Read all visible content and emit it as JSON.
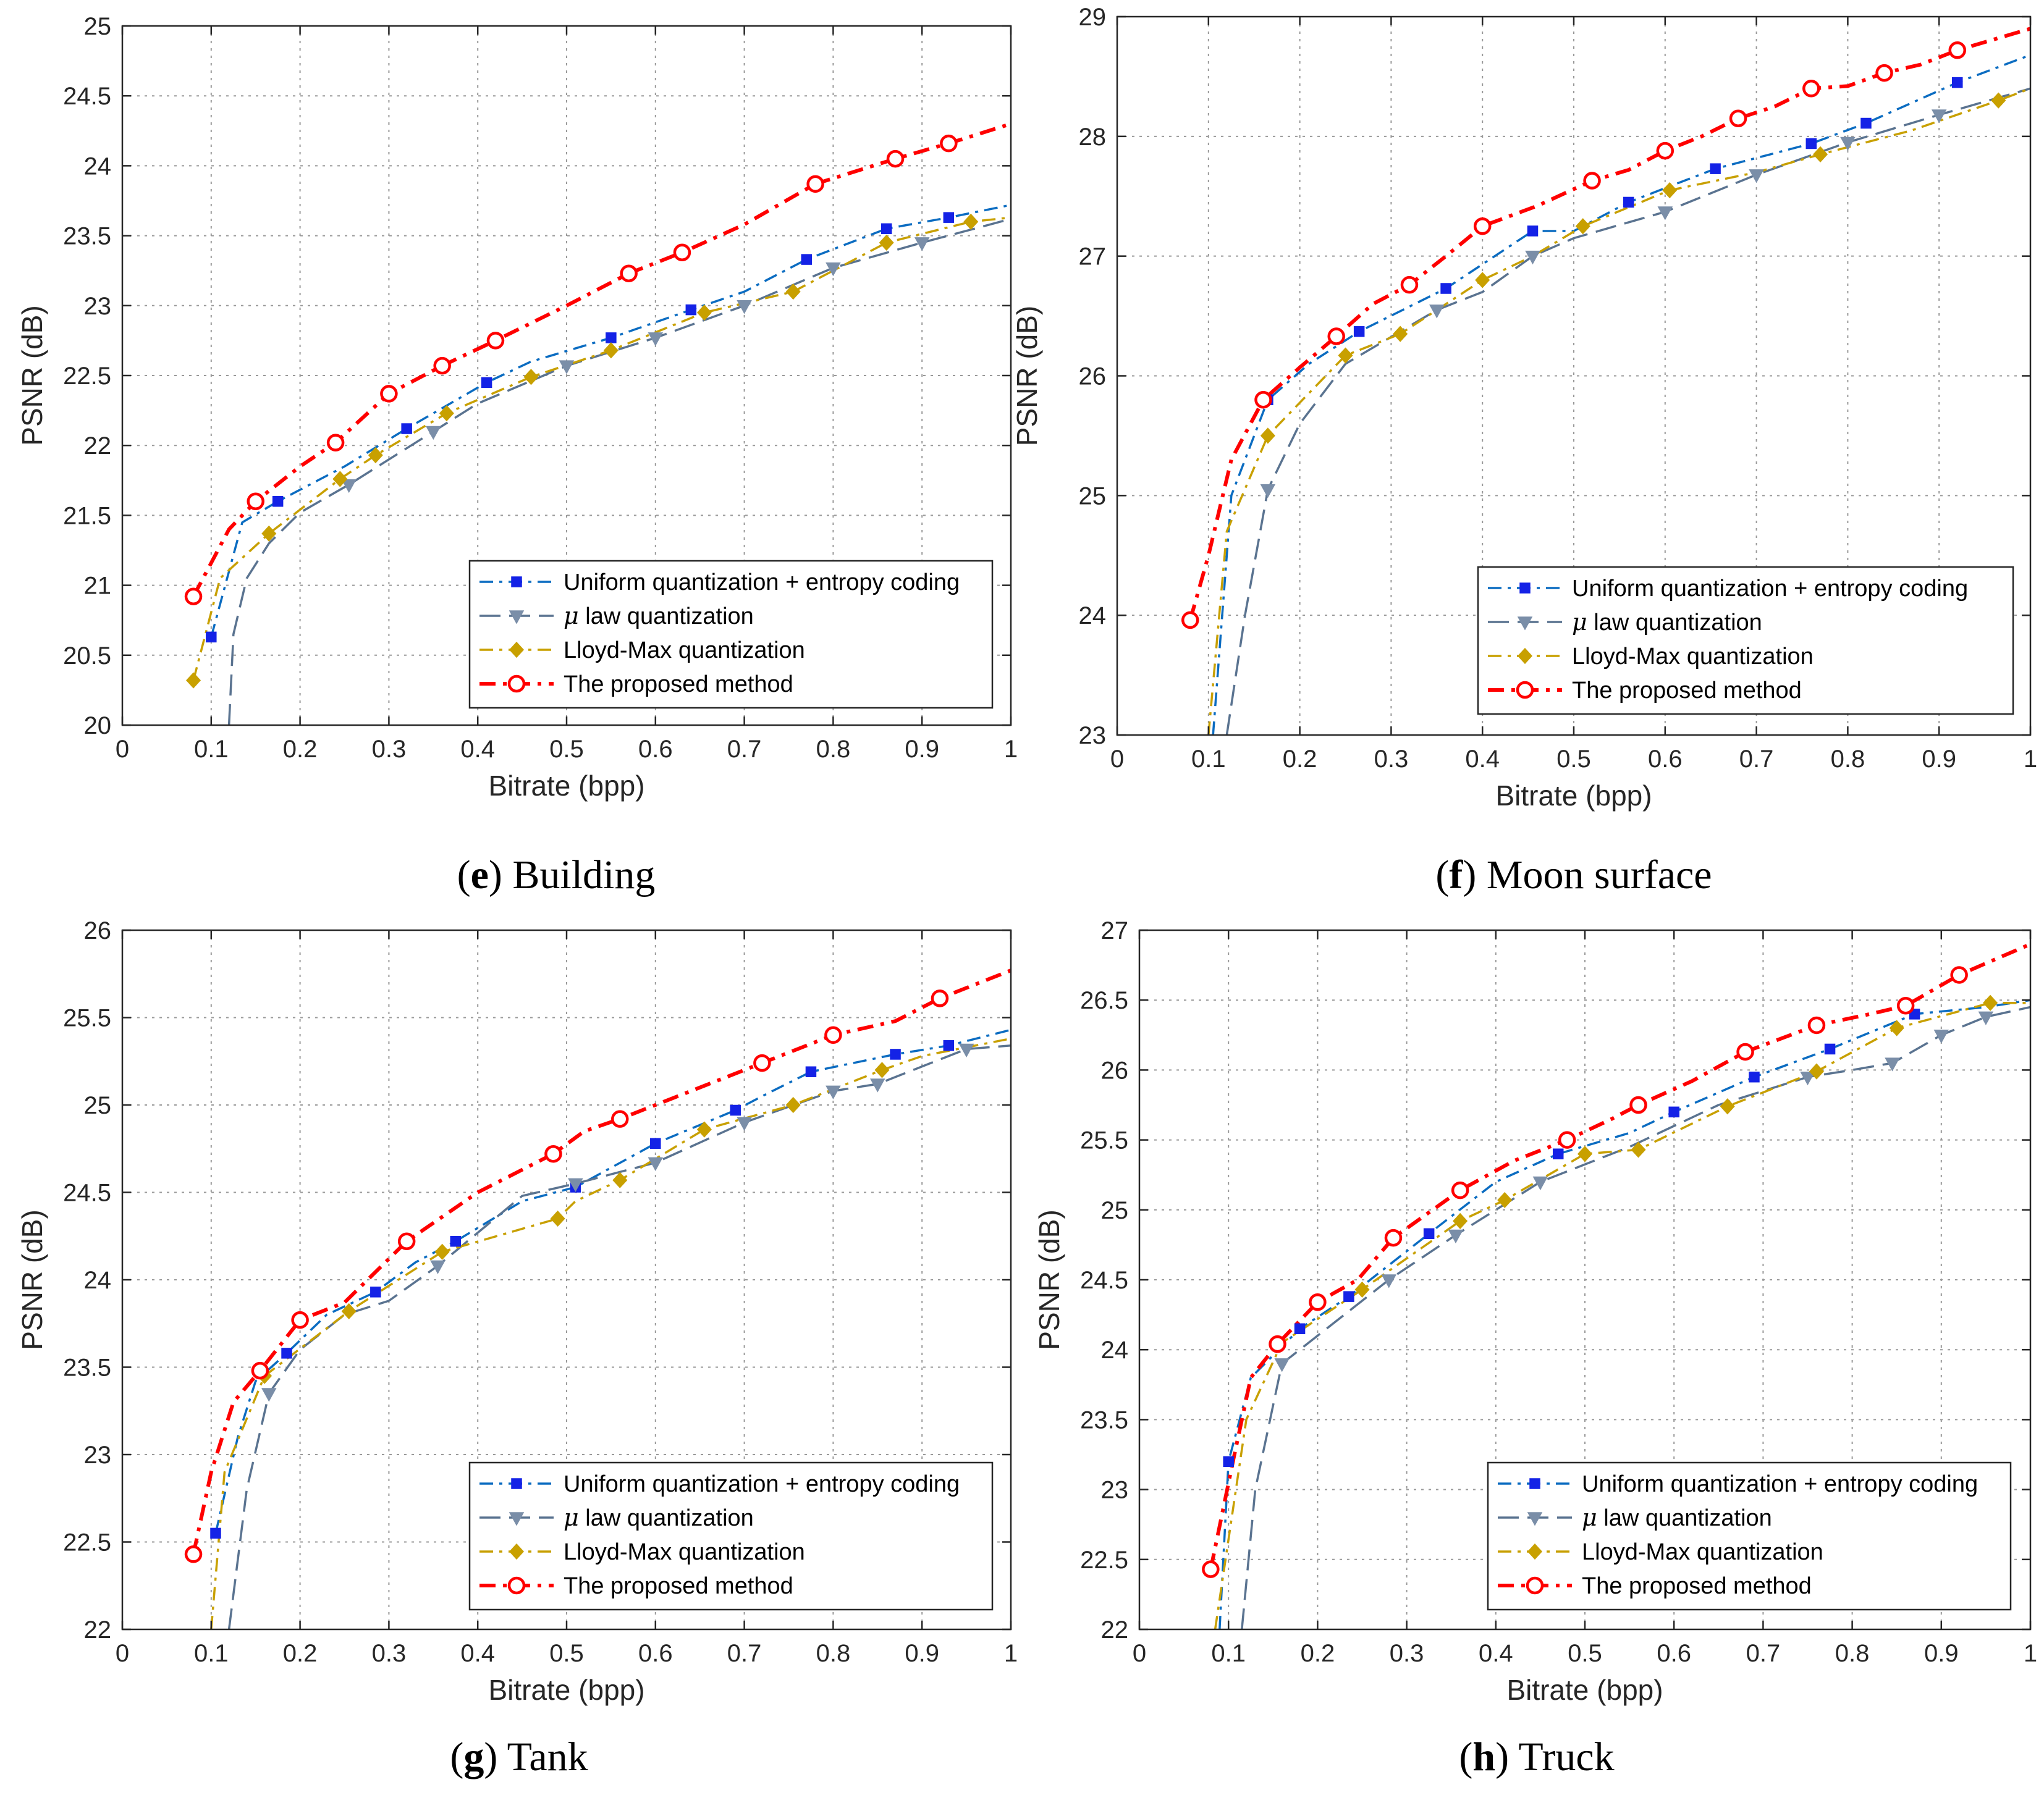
{
  "colors": {
    "uniform": "#0b6cc1",
    "uniform_marker": "#1422e6",
    "mulaw": "#5a7390",
    "mulaw_marker": "#7a8ea8",
    "lloyd": "#c8a000",
    "lloyd_marker": "#c8a000",
    "proposed": "#ff0000",
    "grid": "#999999",
    "axis": "#262626"
  },
  "legend_labels": [
    "Uniform quantization + entropy coding",
    "law quantization",
    "Lloyd-Max quantization",
    "The proposed method"
  ],
  "legend_mu_symbol": "μ",
  "chart_data": [
    {
      "type": "line",
      "caption_letter": "e",
      "caption_title": "Building",
      "xlabel": "Bitrate (bpp)",
      "ylabel": "PSNR (dB)",
      "xlim": [
        0,
        1
      ],
      "ylim": [
        20,
        25
      ],
      "xticks": [
        "0",
        "0.1",
        "0.2",
        "0.3",
        "0.4",
        "0.5",
        "0.6",
        "0.7",
        "0.8",
        "0.9",
        "1"
      ],
      "yticks": [
        "20",
        "20.5",
        "21",
        "21.5",
        "22",
        "22.5",
        "23",
        "23.5",
        "24",
        "24.5",
        "25"
      ],
      "grid": true,
      "legend_position": "bottom-right",
      "series": [
        {
          "name": "Uniform quantization + entropy coding",
          "x": [
            0.1,
            0.135,
            0.175,
            0.25,
            0.32,
            0.41,
            0.46,
            0.55,
            0.64,
            0.7,
            0.77,
            0.86,
            0.93,
            1.0
          ],
          "y": [
            20.63,
            21.45,
            21.6,
            21.85,
            22.12,
            22.45,
            22.6,
            22.77,
            22.97,
            23.1,
            23.33,
            23.55,
            23.63,
            23.72
          ],
          "markers": [
            0,
            2,
            4,
            5,
            7,
            8,
            10,
            11,
            12
          ]
        },
        {
          "name": "μ law quantization",
          "x": [
            0.12,
            0.125,
            0.14,
            0.165,
            0.2,
            0.255,
            0.35,
            0.4,
            0.5,
            0.6,
            0.7,
            0.8,
            0.9,
            1.0
          ],
          "y": [
            20.0,
            20.65,
            21.05,
            21.3,
            21.52,
            21.72,
            22.1,
            22.3,
            22.57,
            22.77,
            23.0,
            23.27,
            23.45,
            23.62
          ],
          "markers": [
            5,
            6,
            8,
            9,
            10,
            11,
            12
          ]
        },
        {
          "name": "Lloyd-Max quantization",
          "x": [
            0.08,
            0.11,
            0.165,
            0.245,
            0.285,
            0.365,
            0.46,
            0.55,
            0.655,
            0.755,
            0.86,
            0.955,
            1.0
          ],
          "y": [
            20.32,
            21.05,
            21.37,
            21.76,
            21.93,
            22.23,
            22.49,
            22.68,
            22.95,
            23.1,
            23.45,
            23.6,
            23.63
          ],
          "markers": [
            0,
            2,
            3,
            4,
            5,
            6,
            7,
            8,
            9,
            10,
            11
          ]
        },
        {
          "name": "The proposed method",
          "x": [
            0.08,
            0.12,
            0.15,
            0.2,
            0.24,
            0.3,
            0.36,
            0.42,
            0.5,
            0.57,
            0.63,
            0.7,
            0.78,
            0.87,
            0.93,
            1.0
          ],
          "y": [
            20.92,
            21.4,
            21.6,
            21.85,
            22.02,
            22.37,
            22.57,
            22.75,
            23.0,
            23.23,
            23.38,
            23.58,
            23.87,
            24.05,
            24.16,
            24.3
          ],
          "markers": [
            0,
            2,
            4,
            5,
            6,
            7,
            9,
            10,
            12,
            13,
            14
          ]
        }
      ]
    },
    {
      "type": "line",
      "caption_letter": "f",
      "caption_title": "Moon surface",
      "xlabel": "Bitrate (bpp)",
      "ylabel": "PSNR (dB)",
      "xlim": [
        0,
        1
      ],
      "ylim": [
        23,
        29
      ],
      "xticks": [
        "0",
        "0.1",
        "0.2",
        "0.3",
        "0.4",
        "0.5",
        "0.6",
        "0.7",
        "0.8",
        "0.9",
        "1"
      ],
      "yticks": [
        "23",
        "24",
        "25",
        "26",
        "27",
        "28",
        "29"
      ],
      "grid": true,
      "legend_position": "bottom-right",
      "series": [
        {
          "name": "Uniform quantization + entropy coding",
          "x": [
            0.105,
            0.125,
            0.165,
            0.21,
            0.265,
            0.36,
            0.455,
            0.5,
            0.56,
            0.655,
            0.76,
            0.82,
            0.92,
            1.0
          ],
          "y": [
            23.0,
            25.0,
            25.8,
            26.1,
            26.37,
            26.73,
            27.21,
            27.21,
            27.45,
            27.73,
            27.94,
            28.11,
            28.45,
            28.68
          ],
          "markers": [
            2,
            4,
            5,
            6,
            8,
            9,
            10,
            11,
            12
          ]
        },
        {
          "name": "μ law quantization",
          "x": [
            0.12,
            0.14,
            0.165,
            0.2,
            0.25,
            0.35,
            0.4,
            0.455,
            0.5,
            0.6,
            0.7,
            0.8,
            0.9,
            1.0
          ],
          "y": [
            23.0,
            24.0,
            25.05,
            25.6,
            26.1,
            26.55,
            26.7,
            27.0,
            27.15,
            27.37,
            27.68,
            27.95,
            28.18,
            28.4
          ],
          "markers": [
            2,
            5,
            7,
            9,
            10,
            11,
            12
          ]
        },
        {
          "name": "Lloyd-Max quantization",
          "x": [
            0.1,
            0.12,
            0.165,
            0.25,
            0.31,
            0.4,
            0.455,
            0.51,
            0.605,
            0.7,
            0.77,
            0.87,
            0.965,
            1.0
          ],
          "y": [
            23.0,
            24.7,
            25.5,
            26.17,
            26.35,
            26.8,
            27.0,
            27.25,
            27.55,
            27.7,
            27.85,
            28.05,
            28.3,
            28.4
          ],
          "markers": [
            2,
            3,
            4,
            5,
            7,
            8,
            10,
            12
          ]
        },
        {
          "name": "The proposed method",
          "x": [
            0.08,
            0.1,
            0.125,
            0.16,
            0.2,
            0.24,
            0.28,
            0.32,
            0.36,
            0.4,
            0.46,
            0.52,
            0.56,
            0.6,
            0.64,
            0.68,
            0.72,
            0.76,
            0.8,
            0.84,
            0.88,
            0.92,
            1.0
          ],
          "y": [
            23.96,
            24.5,
            25.3,
            25.8,
            26.07,
            26.33,
            26.6,
            26.76,
            27.0,
            27.25,
            27.42,
            27.63,
            27.72,
            27.88,
            28.0,
            28.15,
            28.25,
            28.4,
            28.42,
            28.53,
            28.6,
            28.72,
            28.9
          ],
          "markers": [
            0,
            3,
            5,
            7,
            9,
            11,
            13,
            15,
            17,
            19,
            21
          ]
        }
      ]
    },
    {
      "type": "line",
      "caption_letter": "g",
      "caption_title": "Tank",
      "xlabel": "Bitrate (bpp)",
      "ylabel": "PSNR (dB)",
      "xlim": [
        0,
        1
      ],
      "ylim": [
        22,
        26
      ],
      "xticks": [
        "0",
        "0.1",
        "0.2",
        "0.3",
        "0.4",
        "0.5",
        "0.6",
        "0.7",
        "0.8",
        "0.9",
        "1"
      ],
      "yticks": [
        "22",
        "22.5",
        "23",
        "23.5",
        "24",
        "24.5",
        "25",
        "25.5",
        "26"
      ],
      "grid": true,
      "legend_position": "bottom-right",
      "series": [
        {
          "name": "Uniform quantization + entropy coding",
          "x": [
            0.105,
            0.13,
            0.15,
            0.185,
            0.23,
            0.285,
            0.33,
            0.375,
            0.45,
            0.51,
            0.6,
            0.69,
            0.72,
            0.775,
            0.87,
            0.93,
            1.0
          ],
          "y": [
            22.55,
            23.1,
            23.42,
            23.58,
            23.8,
            23.93,
            24.1,
            24.22,
            24.45,
            24.53,
            24.78,
            24.97,
            25.05,
            25.19,
            25.29,
            25.34,
            25.43
          ],
          "markers": [
            0,
            3,
            5,
            7,
            9,
            10,
            11,
            13,
            14,
            15
          ]
        },
        {
          "name": "μ law quantization",
          "x": [
            0.12,
            0.14,
            0.165,
            0.2,
            0.25,
            0.3,
            0.355,
            0.45,
            0.51,
            0.6,
            0.7,
            0.8,
            0.85,
            0.95,
            1.0
          ],
          "y": [
            22.0,
            22.8,
            23.35,
            23.6,
            23.8,
            23.88,
            24.08,
            24.48,
            24.55,
            24.67,
            24.9,
            25.08,
            25.12,
            25.32,
            25.34
          ],
          "markers": [
            2,
            6,
            8,
            9,
            10,
            11,
            12,
            13
          ]
        },
        {
          "name": "Lloyd-Max quantization",
          "x": [
            0.1,
            0.115,
            0.16,
            0.255,
            0.36,
            0.49,
            0.51,
            0.56,
            0.655,
            0.755,
            0.855,
            0.9,
            1.0
          ],
          "y": [
            22.0,
            22.9,
            23.45,
            23.82,
            24.16,
            24.35,
            24.45,
            24.57,
            24.86,
            25.0,
            25.2,
            25.28,
            25.38
          ],
          "markers": [
            2,
            3,
            4,
            5,
            7,
            8,
            9,
            10
          ]
        },
        {
          "name": "The proposed method",
          "x": [
            0.08,
            0.1,
            0.125,
            0.155,
            0.2,
            0.25,
            0.32,
            0.4,
            0.485,
            0.52,
            0.56,
            0.65,
            0.72,
            0.8,
            0.87,
            0.92,
            1.0
          ],
          "y": [
            22.43,
            22.9,
            23.3,
            23.48,
            23.77,
            23.87,
            24.22,
            24.5,
            24.72,
            24.85,
            24.92,
            25.1,
            25.24,
            25.4,
            25.48,
            25.61,
            25.77
          ],
          "markers": [
            0,
            3,
            4,
            6,
            8,
            10,
            12,
            13,
            15
          ]
        }
      ]
    },
    {
      "type": "line",
      "caption_letter": "h",
      "caption_title": "Truck",
      "xlabel": "Bitrate (bpp)",
      "ylabel": "PSNR (dB)",
      "xlim": [
        0,
        1
      ],
      "ylim": [
        22,
        27
      ],
      "xticks": [
        "0",
        "0.1",
        "0.2",
        "0.3",
        "0.4",
        "0.5",
        "0.6",
        "0.7",
        "0.8",
        "0.9",
        "1"
      ],
      "yticks": [
        "22",
        "22.5",
        "23",
        "23.5",
        "24",
        "24.5",
        "25",
        "25.5",
        "26",
        "26.5",
        "27"
      ],
      "grid": true,
      "legend_position": "bottom-right",
      "series": [
        {
          "name": "Uniform quantization + entropy coding",
          "x": [
            0.09,
            0.1,
            0.125,
            0.18,
            0.235,
            0.325,
            0.4,
            0.47,
            0.55,
            0.6,
            0.69,
            0.775,
            0.87,
            0.95,
            1.0
          ],
          "y": [
            22.0,
            23.2,
            23.8,
            24.15,
            24.38,
            24.83,
            25.2,
            25.4,
            25.55,
            25.7,
            25.95,
            26.15,
            26.4,
            26.45,
            26.5
          ],
          "markers": [
            1,
            3,
            4,
            5,
            7,
            9,
            10,
            11,
            12
          ]
        },
        {
          "name": "μ law quantization",
          "x": [
            0.115,
            0.13,
            0.16,
            0.21,
            0.28,
            0.355,
            0.45,
            0.55,
            0.65,
            0.75,
            0.8,
            0.845,
            0.9,
            0.95,
            1.0
          ],
          "y": [
            22.0,
            23.0,
            23.9,
            24.15,
            24.5,
            24.82,
            25.2,
            25.45,
            25.75,
            25.95,
            26.0,
            26.05,
            26.25,
            26.38,
            26.45
          ],
          "markers": [
            2,
            4,
            5,
            6,
            9,
            11,
            12,
            13
          ]
        },
        {
          "name": "Lloyd-Max quantization",
          "x": [
            0.085,
            0.12,
            0.16,
            0.25,
            0.36,
            0.41,
            0.5,
            0.56,
            0.66,
            0.76,
            0.85,
            0.955,
            1.0
          ],
          "y": [
            22.0,
            23.5,
            24.05,
            24.43,
            24.92,
            25.07,
            25.4,
            25.43,
            25.74,
            25.99,
            26.3,
            26.48,
            26.48
          ],
          "markers": [
            3,
            4,
            5,
            6,
            7,
            8,
            9,
            10,
            11
          ]
        },
        {
          "name": "The proposed method",
          "x": [
            0.08,
            0.105,
            0.125,
            0.155,
            0.2,
            0.245,
            0.285,
            0.36,
            0.42,
            0.48,
            0.53,
            0.56,
            0.62,
            0.68,
            0.76,
            0.82,
            0.86,
            0.92,
            1.0
          ],
          "y": [
            22.43,
            23.2,
            23.8,
            24.04,
            24.34,
            24.5,
            24.8,
            25.14,
            25.35,
            25.5,
            25.65,
            25.75,
            25.92,
            26.13,
            26.32,
            26.4,
            26.46,
            26.68,
            26.9
          ],
          "markers": [
            0,
            3,
            4,
            6,
            7,
            9,
            11,
            13,
            14,
            16,
            17
          ]
        }
      ]
    }
  ]
}
